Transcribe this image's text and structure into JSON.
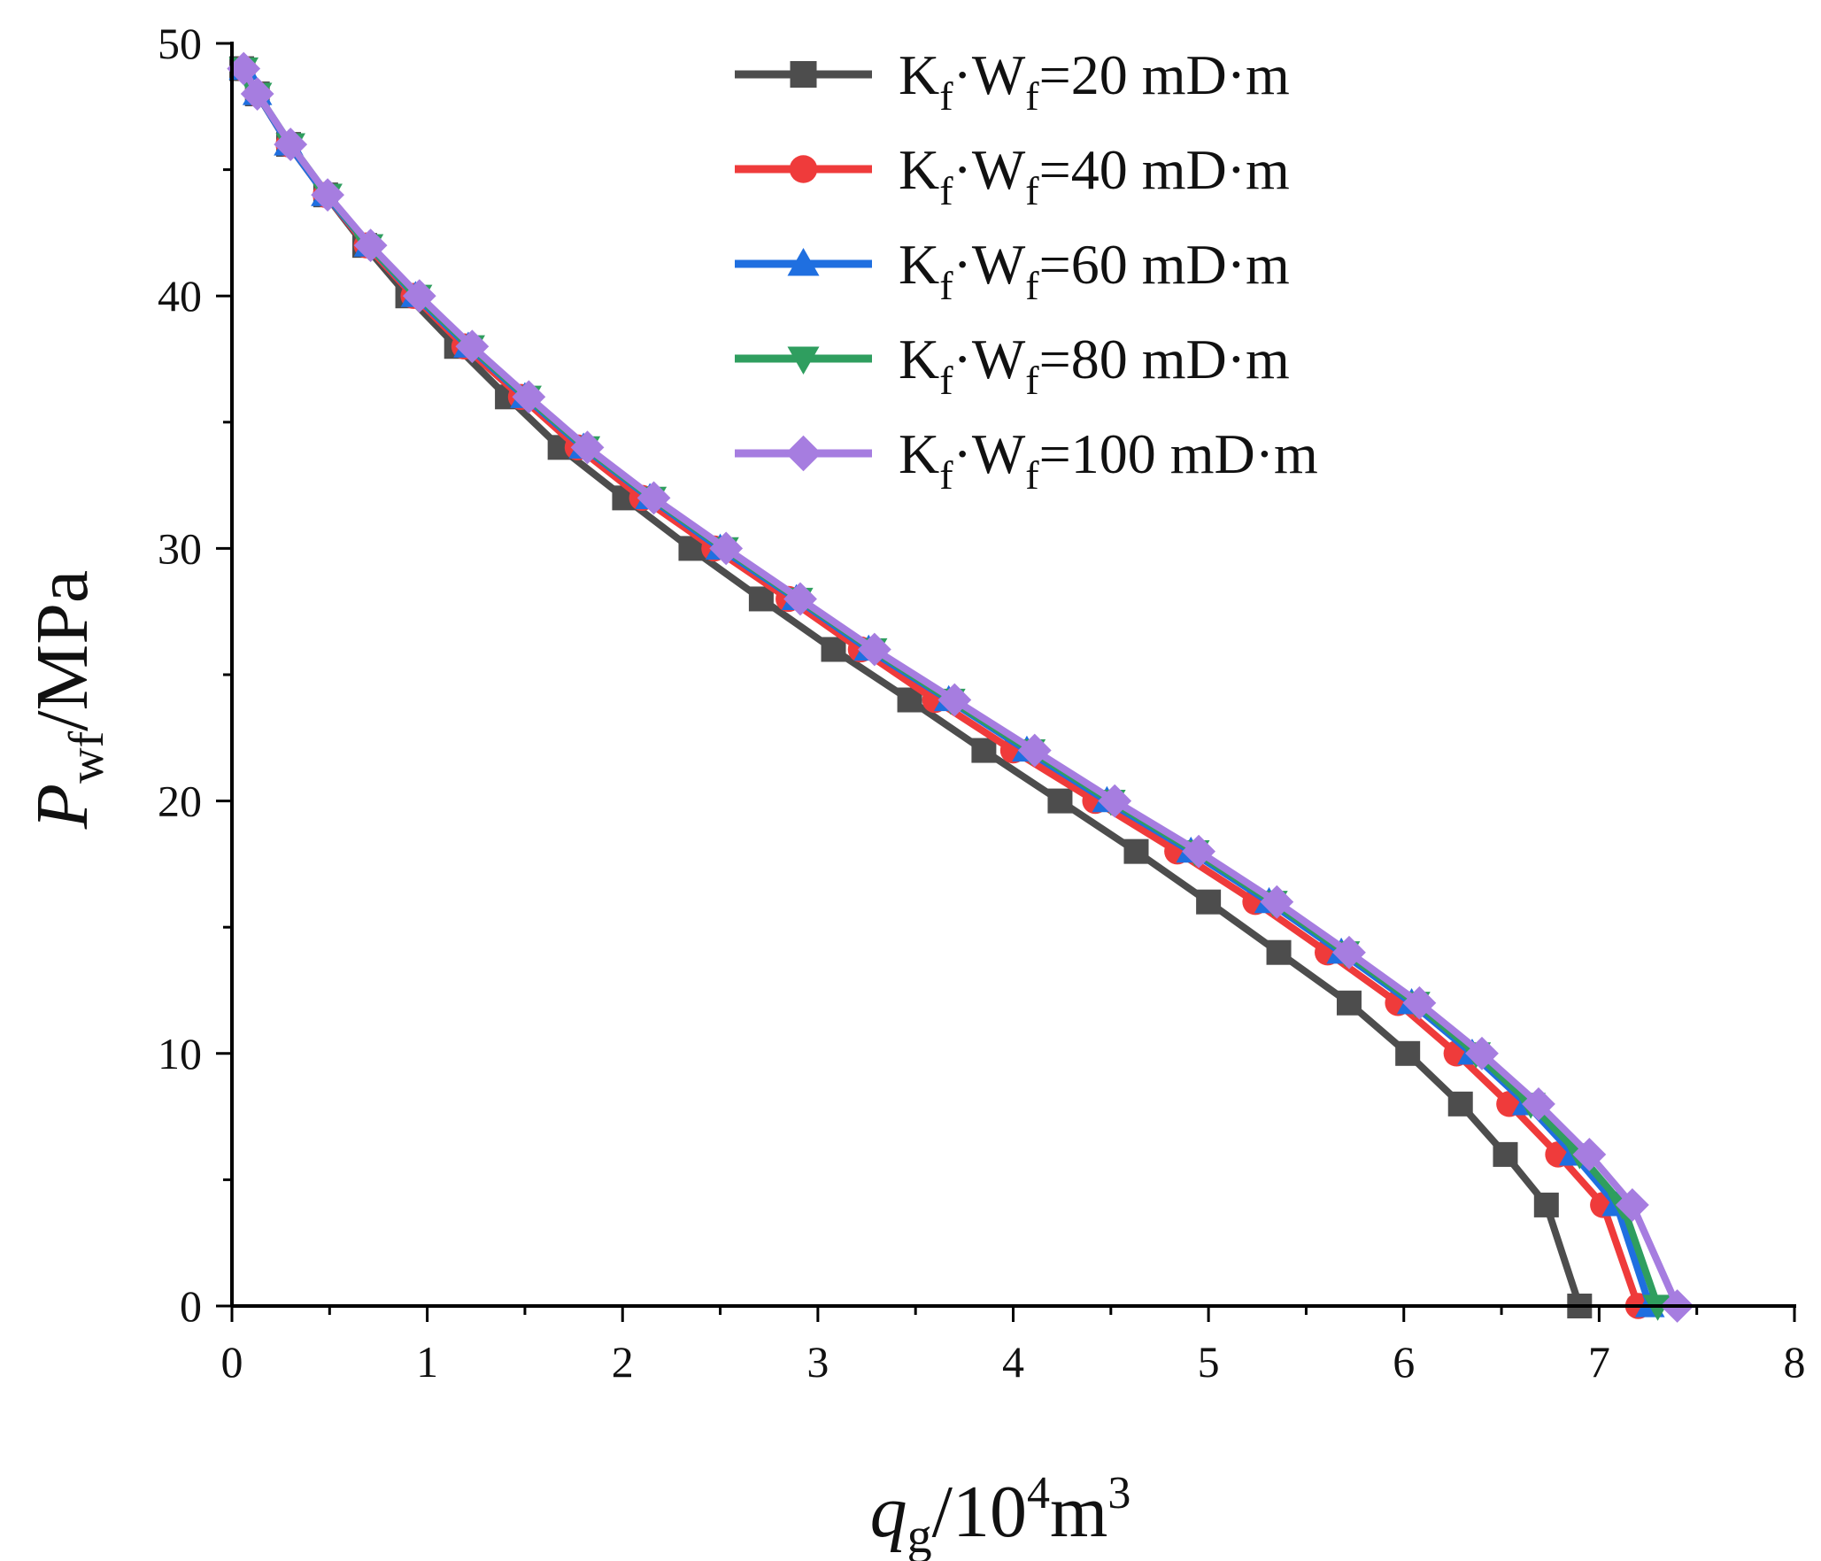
{
  "chart_data": {
    "type": "line",
    "title": "",
    "xlabel": {
      "main": "q",
      "sub": "g",
      "unit_prefix": "/10",
      "unit_sup": "4",
      "unit_mid": "m",
      "unit_sup2": "3"
    },
    "ylabel": {
      "main": "P",
      "sub": "wf",
      "unit": "/MPa"
    },
    "xlim": [
      0,
      8
    ],
    "ylim": [
      0,
      50
    ],
    "x_ticks": [
      0,
      1,
      2,
      3,
      4,
      5,
      6,
      7,
      8
    ],
    "y_ticks": [
      0,
      10,
      20,
      30,
      40,
      50
    ],
    "x_tick_labels": [
      "0",
      "1",
      "2",
      "3",
      "4",
      "5",
      "6",
      "7",
      "8"
    ],
    "y_tick_labels": [
      "0",
      "10",
      "20",
      "30",
      "40",
      "50"
    ],
    "legend_position": "top-right",
    "y": [
      49,
      48,
      46,
      44,
      42,
      40,
      38,
      36,
      34,
      32,
      30,
      28,
      26,
      24,
      22,
      20,
      18,
      16,
      14,
      12,
      10,
      8,
      6,
      4,
      0
    ],
    "series": [
      {
        "name": "K_f·W_f=20 mD·m",
        "legend": {
          "a": "K",
          "a_sub": "f",
          "dot": "·",
          "b": "W",
          "b_sub": "f",
          "value": "=20 mD·m"
        },
        "color": "#4d4d4d",
        "marker": "square",
        "x": [
          0.05,
          0.13,
          0.29,
          0.48,
          0.68,
          0.9,
          1.15,
          1.41,
          1.68,
          2.01,
          2.35,
          2.71,
          3.08,
          3.47,
          3.85,
          4.24,
          4.63,
          5.0,
          5.36,
          5.72,
          6.02,
          6.29,
          6.52,
          6.73,
          6.9
        ]
      },
      {
        "name": "K_f·W_f=40 mD·m",
        "legend": {
          "a": "K",
          "a_sub": "f",
          "dot": "·",
          "b": "W",
          "b_sub": "f",
          "value": "=40 mD·m"
        },
        "color": "#ef3b3b",
        "marker": "circle",
        "x": [
          0.06,
          0.13,
          0.29,
          0.48,
          0.69,
          0.93,
          1.19,
          1.48,
          1.77,
          2.1,
          2.47,
          2.85,
          3.22,
          3.6,
          4.0,
          4.42,
          4.84,
          5.24,
          5.61,
          5.97,
          6.27,
          6.54,
          6.79,
          7.02,
          7.2
        ]
      },
      {
        "name": "K_f·W_f=60 mD·m",
        "legend": {
          "a": "K",
          "a_sub": "f",
          "dot": "·",
          "b": "W",
          "b_sub": "f",
          "value": "=60 mD·m"
        },
        "color": "#1f6fe0",
        "marker": "triangle-up",
        "x": [
          0.06,
          0.13,
          0.29,
          0.48,
          0.7,
          0.94,
          1.21,
          1.5,
          1.8,
          2.14,
          2.5,
          2.89,
          3.26,
          3.67,
          4.07,
          4.48,
          4.91,
          5.31,
          5.68,
          6.04,
          6.35,
          6.63,
          6.87,
          7.09,
          7.26
        ]
      },
      {
        "name": "K_f·W_f=80 mD·m",
        "legend": {
          "a": "K",
          "a_sub": "f",
          "dot": "·",
          "b": "W",
          "b_sub": "f",
          "value": "=80 mD·m"
        },
        "color": "#2f9e5f",
        "marker": "triangle-down",
        "x": [
          0.06,
          0.13,
          0.3,
          0.49,
          0.7,
          0.95,
          1.22,
          1.51,
          1.81,
          2.15,
          2.52,
          2.9,
          3.28,
          3.68,
          4.09,
          4.5,
          4.93,
          5.33,
          5.7,
          6.06,
          6.37,
          6.65,
          6.9,
          7.12,
          7.3
        ]
      },
      {
        "name": "K_f·W_f=100 mD·m",
        "legend": {
          "a": "K",
          "a_sub": "f",
          "dot": "·",
          "b": "W",
          "b_sub": "f",
          "value": "=100 mD·m"
        },
        "color": "#a67de0",
        "marker": "diamond",
        "x": [
          0.06,
          0.13,
          0.3,
          0.49,
          0.71,
          0.96,
          1.23,
          1.52,
          1.82,
          2.16,
          2.53,
          2.91,
          3.29,
          3.7,
          4.11,
          4.52,
          4.95,
          5.35,
          5.72,
          6.08,
          6.4,
          6.69,
          6.95,
          7.17,
          7.4
        ]
      }
    ]
  }
}
